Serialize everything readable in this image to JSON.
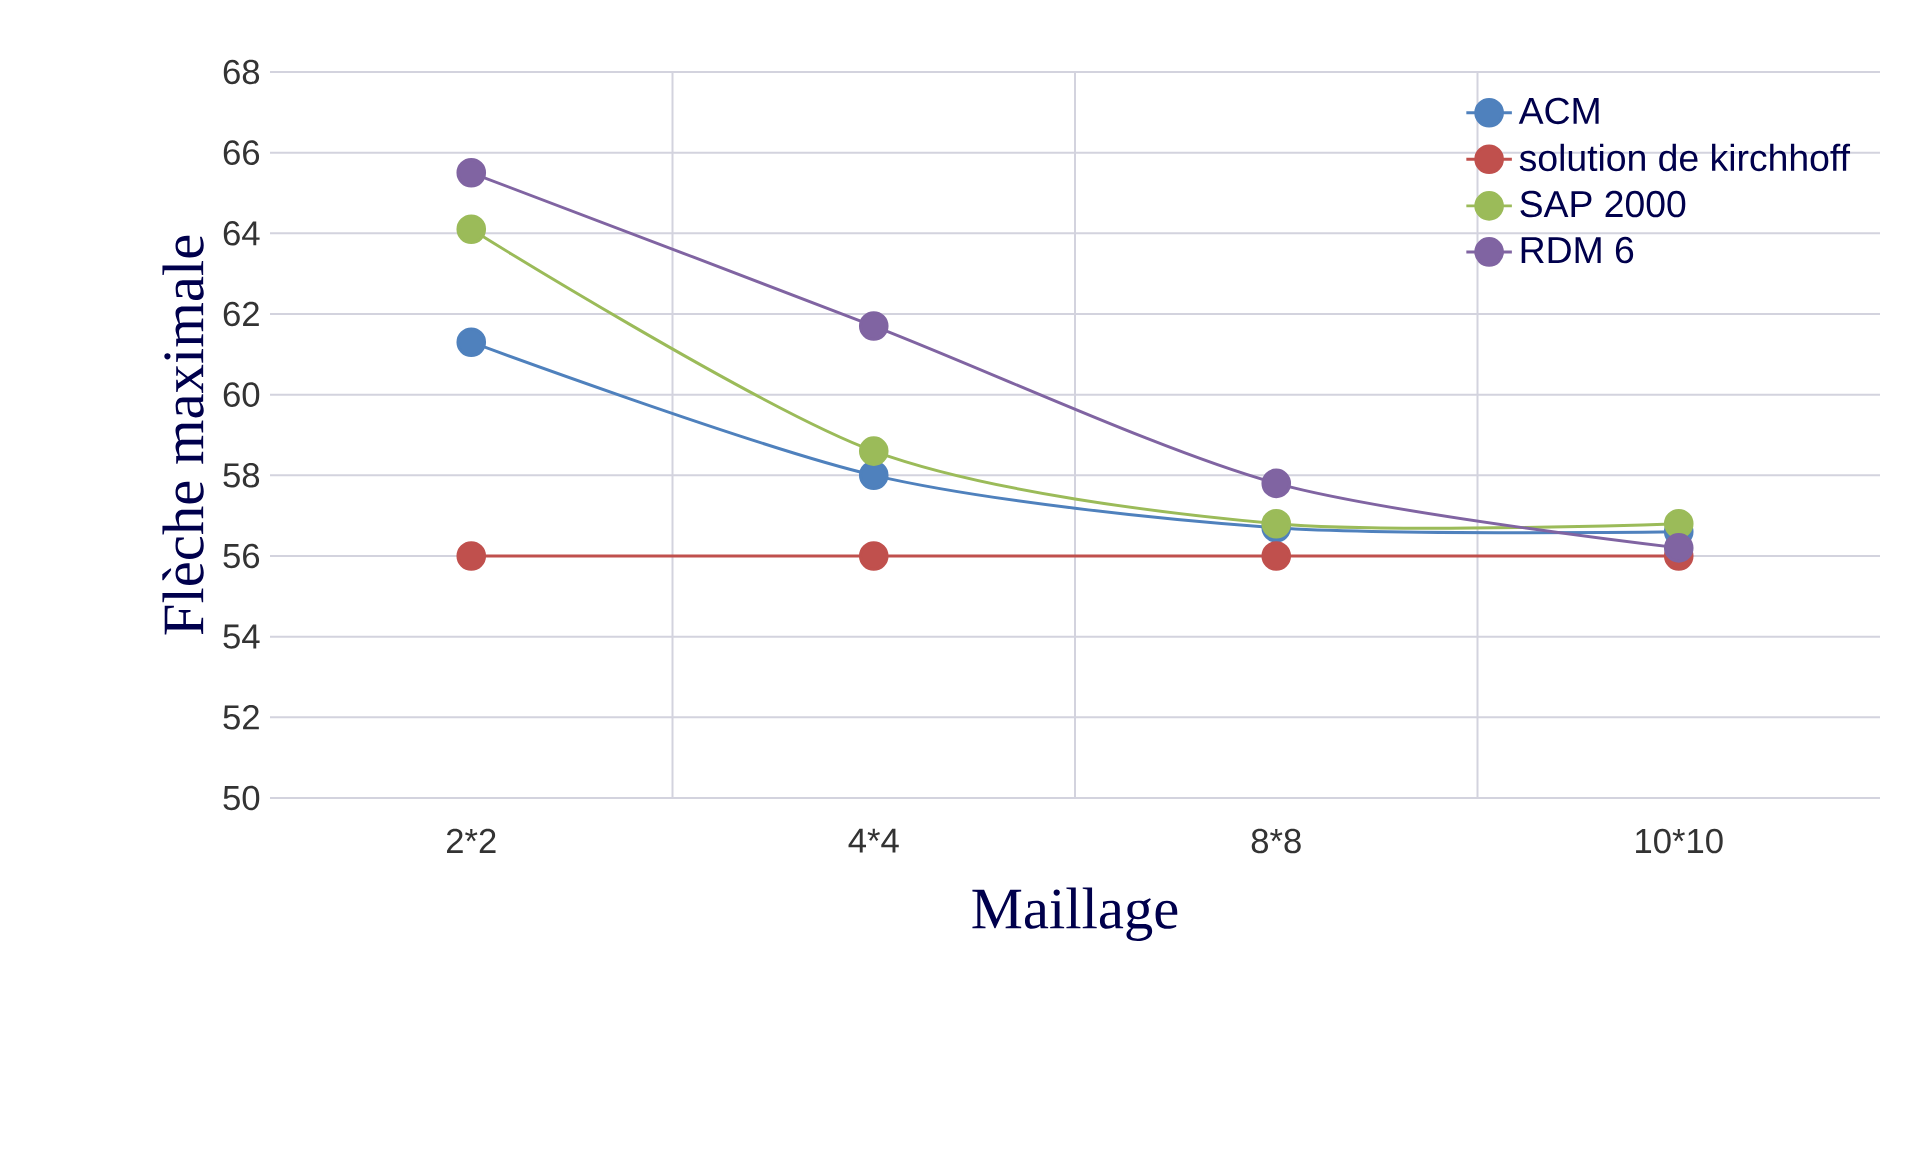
{
  "chart_data": {
    "type": "line",
    "xlabel": "Maillage",
    "ylabel": "Flèche maximale",
    "categories": [
      "2*2",
      "4*4",
      "8*8",
      "10*10"
    ],
    "series": [
      {
        "name": "ACM",
        "color": "#4f81bd",
        "values": [
          61.3,
          58.0,
          56.7,
          56.6
        ]
      },
      {
        "name": "solution de kirchhoff",
        "color": "#c0504d",
        "values": [
          56,
          56,
          56,
          56
        ]
      },
      {
        "name": "SAP 2000",
        "color": "#9bbb59",
        "values": [
          64.1,
          58.6,
          56.8,
          56.8
        ]
      },
      {
        "name": "RDM 6",
        "color": "#8064a2",
        "values": [
          65.5,
          61.7,
          57.8,
          56.2
        ]
      }
    ],
    "ylim": [
      50,
      68
    ],
    "yticks": [
      50,
      52,
      54,
      56,
      58,
      60,
      62,
      64,
      66,
      68
    ],
    "grid": true,
    "legend": "top right",
    "marker": "circle"
  }
}
